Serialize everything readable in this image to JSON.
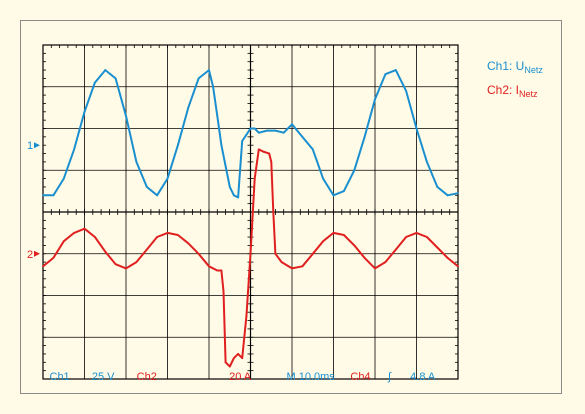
{
  "chart_data": {
    "type": "line",
    "title": "",
    "legend_placement": "right",
    "grid": true,
    "colors": {
      "ch1": "#1a8fd0",
      "ch2": "#e02020",
      "grid": "#000000",
      "readout": "#1a8fd0",
      "background": "#fffbe6"
    },
    "legend": [
      {
        "base": "Ch1: U",
        "sub": "Netz",
        "color": "#1a8fd0"
      },
      {
        "base": "Ch2: I",
        "sub": "Netz",
        "color": "#e02020"
      }
    ],
    "x_divisions": 10,
    "y_divisions": 8,
    "x_unit": "ms",
    "x_range_div": [
      0,
      10
    ],
    "y_range_div": [
      -4,
      4
    ],
    "channel_markers": [
      {
        "label": "1",
        "level_div": 1.6,
        "color": "#1a8fd0"
      },
      {
        "label": "2",
        "level_div": -1.0,
        "color": "#e02020"
      }
    ],
    "series": [
      {
        "name": "Ch1: UNetz",
        "color": "#1a8fd0",
        "x_div": [
          0,
          0.25,
          0.5,
          0.75,
          1.0,
          1.25,
          1.5,
          1.75,
          2.0,
          2.25,
          2.5,
          2.75,
          3.0,
          3.25,
          3.5,
          3.75,
          4.0,
          4.1,
          4.2,
          4.3,
          4.4,
          4.5,
          4.6,
          4.7,
          4.8,
          4.9,
          5.0,
          5.1,
          5.2,
          5.4,
          5.6,
          5.8,
          6.0,
          6.25,
          6.5,
          6.75,
          7.0,
          7.25,
          7.5,
          7.75,
          8.0,
          8.25,
          8.5,
          8.75,
          9.0,
          9.25,
          9.5,
          9.75,
          10.0
        ],
        "y_div": [
          0.4,
          0.4,
          0.8,
          1.5,
          2.4,
          3.1,
          3.4,
          3.2,
          2.3,
          1.2,
          0.6,
          0.4,
          0.8,
          1.6,
          2.5,
          3.2,
          3.4,
          3.0,
          2.3,
          1.6,
          1.1,
          0.6,
          0.4,
          0.35,
          1.7,
          1.85,
          2.0,
          2.0,
          1.9,
          1.95,
          1.95,
          1.9,
          2.1,
          1.8,
          1.5,
          0.8,
          0.4,
          0.5,
          1.0,
          1.8,
          2.7,
          3.3,
          3.4,
          2.9,
          2.0,
          1.2,
          0.6,
          0.4,
          0.45
        ]
      },
      {
        "name": "Ch2: INetz",
        "color": "#e02020",
        "x_div": [
          0,
          0.25,
          0.5,
          0.75,
          1.0,
          1.25,
          1.5,
          1.75,
          2.0,
          2.25,
          2.5,
          2.75,
          3.0,
          3.25,
          3.5,
          3.75,
          4.0,
          4.2,
          4.3,
          4.35,
          4.4,
          4.5,
          4.6,
          4.7,
          4.8,
          4.9,
          5.0,
          5.1,
          5.2,
          5.3,
          5.45,
          5.5,
          5.55,
          5.6,
          5.75,
          6.0,
          6.25,
          6.5,
          6.75,
          7.0,
          7.25,
          7.5,
          7.75,
          8.0,
          8.25,
          8.5,
          8.75,
          9.0,
          9.25,
          9.5,
          9.75,
          10.0
        ],
        "y_div": [
          -1.3,
          -1.1,
          -0.7,
          -0.5,
          -0.4,
          -0.6,
          -0.95,
          -1.25,
          -1.35,
          -1.2,
          -0.9,
          -0.6,
          -0.5,
          -0.55,
          -0.75,
          -1.0,
          -1.3,
          -1.4,
          -1.4,
          -1.9,
          -3.6,
          -3.7,
          -3.5,
          -3.4,
          -3.5,
          -2.5,
          -1.0,
          0.8,
          1.5,
          1.45,
          1.4,
          1.2,
          0.0,
          -1.0,
          -1.2,
          -1.35,
          -1.3,
          -1.0,
          -0.7,
          -0.5,
          -0.55,
          -0.8,
          -1.1,
          -1.35,
          -1.2,
          -0.9,
          -0.6,
          -0.5,
          -0.6,
          -0.85,
          -1.1,
          -1.3
        ]
      }
    ],
    "readout": [
      {
        "text": "Ch1",
        "color": "#1a8fd0",
        "at_div": 0.4
      },
      {
        "text": "25 V",
        "color": "#1a8fd0",
        "at_div": 1.45
      },
      {
        "text": "Ch2",
        "color": "#e02020",
        "at_div": 2.5
      },
      {
        "text": "20 A",
        "color": "#e02020",
        "at_div": 4.75
      },
      {
        "text": "M 10.0ms",
        "color": "#1a8fd0",
        "at_div": 6.45
      },
      {
        "text": "Ch4",
        "color": "#e02020",
        "at_div": 7.65
      },
      {
        "text": "ʃ",
        "color": "#1a8fd0",
        "at_div": 8.35
      },
      {
        "text": "4.8 A",
        "color": "#1a8fd0",
        "at_div": 9.15
      }
    ]
  }
}
